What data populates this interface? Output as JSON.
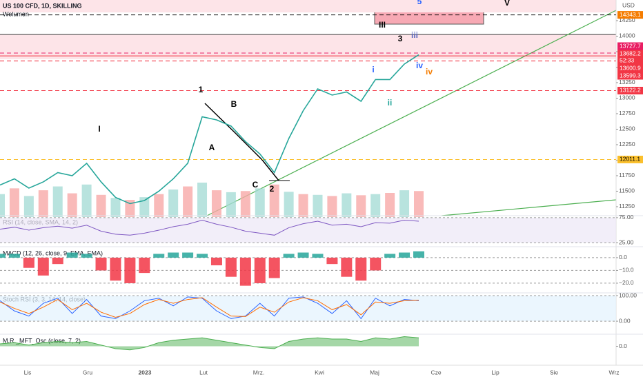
{
  "header": {
    "unit": "USD",
    "countdown": "52:33"
  },
  "annotations": [
    "I",
    "1",
    "A",
    "B",
    "C",
    "2",
    "3",
    "III",
    "i",
    "ii",
    "iii",
    "iv",
    "iv",
    "5",
    "V"
  ],
  "time_labels": [
    "Lis",
    "Gru",
    "2023",
    "Lut",
    "Mrz.",
    "Kwi",
    "Maj",
    "Cze",
    "Lip",
    "Sie",
    "Wrz"
  ],
  "chart_data": [
    {
      "type": "line",
      "title": "US 100 CFD, 1D, SKILLING",
      "subtitle": "Wolumen",
      "color": "#26a69a",
      "ylim": [
        11083,
        14583
      ],
      "yticks": [
        11250,
        11500,
        11750,
        12000,
        12250,
        12500,
        12750,
        13000,
        13250,
        13500,
        13750,
        14000,
        14250
      ],
      "series": [
        {
          "name": "US 100 CFD",
          "color": "#26a69a",
          "values": [
            11600,
            11700,
            11550,
            11650,
            11800,
            11750,
            11950,
            11650,
            11400,
            11300,
            11350,
            11500,
            11700,
            11950,
            12700,
            12650,
            12550,
            12300,
            12100,
            11800,
            12350,
            12800,
            13150,
            13050,
            13100,
            12950,
            13300,
            13300,
            13550,
            13700
          ]
        }
      ],
      "volume": [
        60,
        75,
        55,
        70,
        80,
        62,
        85,
        58,
        50,
        45,
        52,
        60,
        72,
        80,
        90,
        70,
        65,
        68,
        75,
        85,
        66,
        60,
        58,
        55,
        62,
        57,
        60,
        63,
        70,
        68
      ],
      "levels": [
        {
          "value": 14343.1,
          "color": "#f57c00"
        },
        {
          "value": 13727.7,
          "color": "#e91e63"
        },
        {
          "value": 13682.2,
          "color": "#f23645"
        },
        {
          "value": 13600.9,
          "color": "#f23645"
        },
        {
          "value": 13599.3,
          "color": "#f23645"
        },
        {
          "value": 13122.2,
          "color": "#f23645"
        },
        {
          "value": 12011.1,
          "color": "#fbc02d"
        }
      ]
    },
    {
      "type": "line",
      "title": "RSI (14, close, SMA, 14, 2)",
      "ylim": [
        17,
        79
      ],
      "yticks": [
        {
          "value": 75,
          "label": "75.00"
        },
        {
          "value": 25,
          "label": "25.00"
        }
      ],
      "series": [
        {
          "name": "RSI",
          "color": "#7e57c2",
          "values": [
            52,
            56,
            50,
            55,
            58,
            54,
            60,
            48,
            42,
            40,
            44,
            50,
            57,
            62,
            70,
            62,
            56,
            48,
            44,
            40,
            55,
            63,
            68,
            60,
            62,
            57,
            65,
            64,
            70,
            68
          ]
        }
      ]
    },
    {
      "type": "bar",
      "title": "MACD (12, 26, close, 9, EMA, EMA)",
      "ylim": [
        -27.6,
        8.6
      ],
      "yticks": [
        {
          "value": 0,
          "label": "0.0"
        },
        {
          "value": -10,
          "label": "−10.0"
        },
        {
          "value": -20,
          "label": "−20.0"
        }
      ],
      "series": [
        {
          "name": "MACD",
          "color": "#f23645",
          "values": [
            3,
            3,
            -8,
            -14,
            -5,
            4,
            3,
            -10,
            -18,
            -20,
            -12,
            3,
            4,
            4,
            3,
            -6,
            -15,
            -22,
            -20,
            -16,
            3,
            4,
            3,
            -5,
            -15,
            -18,
            -10,
            3,
            4,
            5
          ]
        }
      ]
    },
    {
      "type": "line",
      "title": "Stoch RSI (3, 3, 14, 14, close)",
      "ylim": [
        -51,
        110.8
      ],
      "yticks": [
        {
          "value": 100,
          "label": "100.00"
        },
        {
          "value": 0,
          "label": "0.00"
        }
      ],
      "series": [
        {
          "name": "K",
          "color": "#2962ff",
          "values": [
            80,
            40,
            20,
            70,
            90,
            30,
            85,
            20,
            10,
            40,
            80,
            90,
            60,
            95,
            90,
            40,
            10,
            20,
            70,
            20,
            90,
            95,
            70,
            30,
            80,
            10,
            90,
            60,
            85,
            80
          ]
        },
        {
          "name": "D",
          "color": "#ff6d00",
          "values": [
            75,
            50,
            30,
            55,
            85,
            45,
            70,
            35,
            15,
            30,
            65,
            85,
            70,
            85,
            92,
            55,
            20,
            18,
            55,
            35,
            75,
            92,
            80,
            45,
            65,
            25,
            75,
            70,
            80,
            82
          ]
        }
      ]
    },
    {
      "type": "area",
      "title": "M.R._MFT_Osc (close, 7, 2)",
      "ylim": [
        -1,
        1
      ],
      "yticks": [
        {
          "value": 0,
          "label": "0.0"
        }
      ],
      "series": [
        {
          "name": "Osc",
          "color": "#4caf50",
          "values": [
            0.2,
            0.3,
            0.1,
            0.3,
            0.4,
            0.3,
            0.4,
            0.1,
            -0.2,
            -0.3,
            -0.1,
            0.3,
            0.5,
            0.6,
            0.7,
            0.5,
            0.3,
            0.1,
            -0.1,
            -0.2,
            0.4,
            0.6,
            0.7,
            0.6,
            0.6,
            0.4,
            0.7,
            0.6,
            0.8,
            0.7
          ]
        }
      ]
    }
  ]
}
